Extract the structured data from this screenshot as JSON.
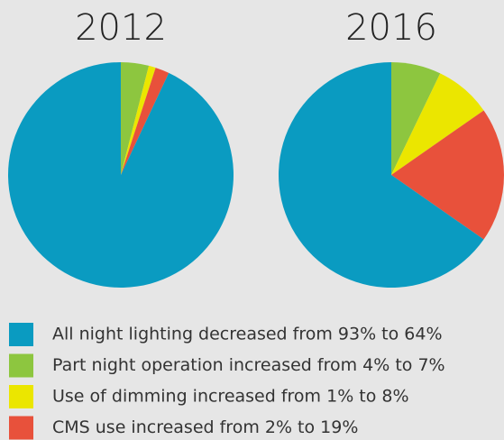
{
  "chart_data": [
    {
      "type": "pie",
      "title": "2012",
      "values": [
        93,
        4,
        1,
        2
      ],
      "colors": [
        "#0a9bc1",
        "#8dc63f",
        "#ebe600",
        "#e8513b"
      ],
      "start_order": [
        1,
        2,
        3,
        0
      ]
    },
    {
      "type": "pie",
      "title": "2016",
      "values": [
        64,
        7,
        8,
        19
      ],
      "colors": [
        "#0a9bc1",
        "#8dc63f",
        "#ebe600",
        "#e8513b"
      ],
      "start_order": [
        1,
        2,
        3,
        0
      ]
    }
  ],
  "legend": [
    "All night lighting decreased from 93% to 64%",
    "Part night operation increased from 4% to 7%",
    "Use of dimming increased from 1% to 8%",
    "CMS use increased from 2% to 19%"
  ]
}
